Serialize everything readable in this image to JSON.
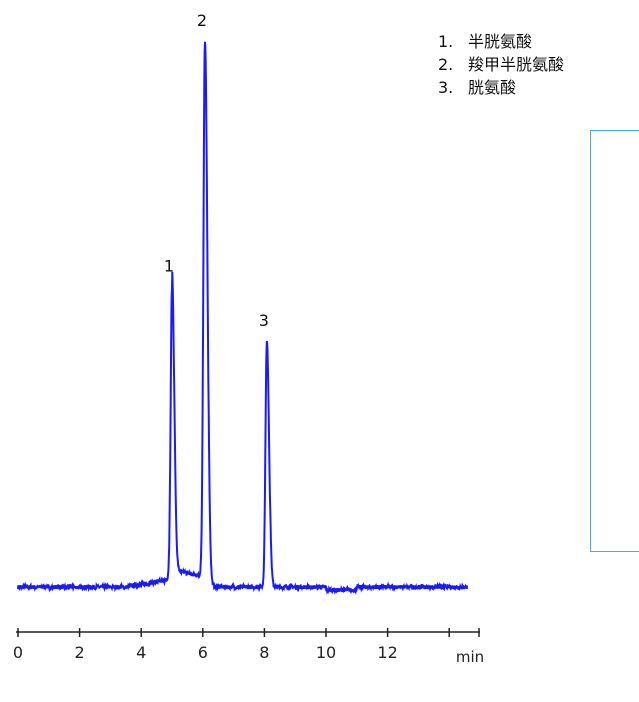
{
  "chart_data": {
    "type": "line",
    "title": "",
    "xlabel": "min",
    "ylabel": "",
    "xlim": [
      0,
      14.6
    ],
    "x_ticks": [
      "0",
      "2",
      "4",
      "6",
      "8",
      "10",
      "12"
    ],
    "grid": false,
    "y_axis_shown": false,
    "line_color": "#1a1aff",
    "peaks": [
      {
        "label": "1",
        "retention_time": 5.0,
        "relative_height": 0.55
      },
      {
        "label": "2",
        "retention_time": 6.07,
        "relative_height": 1.0
      },
      {
        "label": "3",
        "retention_time": 8.08,
        "relative_height": 0.45
      }
    ],
    "legend": [
      {
        "num": "1.",
        "name": "半胱氨酸"
      },
      {
        "num": "2.",
        "name": "羧甲半胱氨酸"
      },
      {
        "num": "3.",
        "name": "胱氨酸"
      }
    ],
    "legend_position": "top-right"
  }
}
